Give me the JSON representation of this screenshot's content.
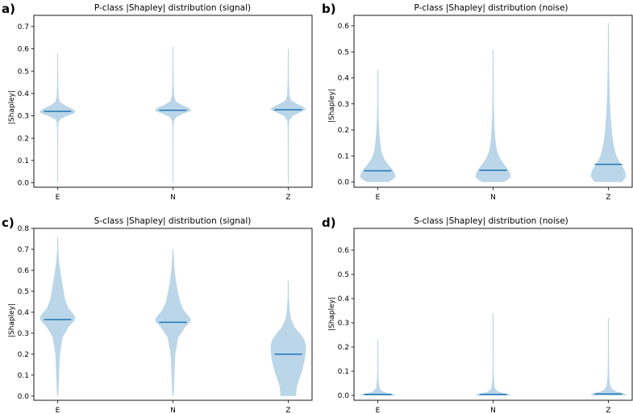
{
  "colors": {
    "violin": "#1f77b4",
    "median": "#1f77b4"
  },
  "chart_data": [
    {
      "tag": "a)",
      "type": "violin",
      "title": "P-class |Shapley| distribution (signal)",
      "xlabel": "",
      "ylabel": "|Shapley|",
      "categories": [
        "E",
        "N",
        "Z"
      ],
      "ylim": [
        -0.02,
        0.75
      ],
      "yticks": [
        0.0,
        0.1,
        0.2,
        0.3,
        0.4,
        0.5,
        0.6,
        0.7
      ],
      "yticklabels": [
        "0.0",
        "0.1",
        "0.2",
        "0.3",
        "0.4",
        "0.5",
        "0.6",
        "0.7"
      ],
      "series": [
        {
          "name": "E",
          "min": 0.0,
          "max": 0.58,
          "median": 0.32,
          "profile": [
            [
              0.0,
              0.0
            ],
            [
              0.04,
              0.01
            ],
            [
              0.15,
              0.02
            ],
            [
              0.24,
              0.03
            ],
            [
              0.27,
              0.05
            ],
            [
              0.285,
              0.15
            ],
            [
              0.3,
              0.55
            ],
            [
              0.31,
              0.9
            ],
            [
              0.32,
              1.0
            ],
            [
              0.33,
              0.85
            ],
            [
              0.345,
              0.45
            ],
            [
              0.36,
              0.15
            ],
            [
              0.38,
              0.06
            ],
            [
              0.43,
              0.035
            ],
            [
              0.5,
              0.015
            ],
            [
              0.58,
              0.0
            ]
          ]
        },
        {
          "name": "N",
          "min": 0.0,
          "max": 0.61,
          "median": 0.325,
          "profile": [
            [
              0.0,
              0.0
            ],
            [
              0.05,
              0.01
            ],
            [
              0.16,
              0.02
            ],
            [
              0.25,
              0.03
            ],
            [
              0.28,
              0.06
            ],
            [
              0.295,
              0.2
            ],
            [
              0.31,
              0.6
            ],
            [
              0.32,
              0.95
            ],
            [
              0.327,
              1.0
            ],
            [
              0.337,
              0.85
            ],
            [
              0.35,
              0.45
            ],
            [
              0.365,
              0.15
            ],
            [
              0.39,
              0.06
            ],
            [
              0.45,
              0.035
            ],
            [
              0.53,
              0.015
            ],
            [
              0.61,
              0.0
            ]
          ]
        },
        {
          "name": "Z",
          "min": 0.0,
          "max": 0.6,
          "median": 0.327,
          "profile": [
            [
              0.0,
              0.0
            ],
            [
              0.05,
              0.01
            ],
            [
              0.16,
              0.02
            ],
            [
              0.25,
              0.03
            ],
            [
              0.28,
              0.06
            ],
            [
              0.3,
              0.25
            ],
            [
              0.315,
              0.65
            ],
            [
              0.325,
              0.95
            ],
            [
              0.33,
              1.0
            ],
            [
              0.34,
              0.85
            ],
            [
              0.355,
              0.45
            ],
            [
              0.37,
              0.15
            ],
            [
              0.395,
              0.06
            ],
            [
              0.45,
              0.035
            ],
            [
              0.52,
              0.015
            ],
            [
              0.6,
              0.0
            ]
          ]
        }
      ]
    },
    {
      "tag": "b)",
      "type": "violin",
      "title": "P-class |Shapley| distribution (noise)",
      "xlabel": "",
      "ylabel": "|Shapley|",
      "categories": [
        "E",
        "N",
        "Z"
      ],
      "ylim": [
        -0.02,
        0.64
      ],
      "yticks": [
        0.0,
        0.1,
        0.2,
        0.3,
        0.4,
        0.5,
        0.6
      ],
      "yticklabels": [
        "0.0",
        "0.1",
        "0.2",
        "0.3",
        "0.4",
        "0.5",
        "0.6"
      ],
      "series": [
        {
          "name": "E",
          "min": 0.0,
          "max": 0.43,
          "median": 0.043,
          "profile": [
            [
              0.0,
              0.6
            ],
            [
              0.01,
              0.85
            ],
            [
              0.02,
              1.0
            ],
            [
              0.035,
              0.95
            ],
            [
              0.05,
              0.8
            ],
            [
              0.07,
              0.55
            ],
            [
              0.09,
              0.35
            ],
            [
              0.12,
              0.2
            ],
            [
              0.16,
              0.12
            ],
            [
              0.22,
              0.06
            ],
            [
              0.3,
              0.03
            ],
            [
              0.43,
              0.0
            ]
          ]
        },
        {
          "name": "N",
          "min": 0.0,
          "max": 0.51,
          "median": 0.045,
          "profile": [
            [
              0.0,
              0.6
            ],
            [
              0.01,
              0.85
            ],
            [
              0.02,
              1.0
            ],
            [
              0.035,
              0.95
            ],
            [
              0.05,
              0.82
            ],
            [
              0.07,
              0.6
            ],
            [
              0.09,
              0.4
            ],
            [
              0.12,
              0.22
            ],
            [
              0.16,
              0.13
            ],
            [
              0.22,
              0.07
            ],
            [
              0.32,
              0.035
            ],
            [
              0.51,
              0.0
            ]
          ]
        },
        {
          "name": "Z",
          "min": 0.0,
          "max": 0.61,
          "median": 0.068,
          "profile": [
            [
              0.0,
              0.75
            ],
            [
              0.01,
              0.9
            ],
            [
              0.025,
              1.0
            ],
            [
              0.045,
              0.92
            ],
            [
              0.07,
              0.68
            ],
            [
              0.1,
              0.45
            ],
            [
              0.14,
              0.3
            ],
            [
              0.19,
              0.2
            ],
            [
              0.26,
              0.12
            ],
            [
              0.34,
              0.07
            ],
            [
              0.45,
              0.035
            ],
            [
              0.61,
              0.0
            ]
          ]
        }
      ]
    },
    {
      "tag": "c)",
      "type": "violin",
      "title": "S-class |Shapley| distribution (signal)",
      "xlabel": "",
      "ylabel": "|Shapley|",
      "categories": [
        "E",
        "N",
        "Z"
      ],
      "ylim": [
        -0.02,
        0.8
      ],
      "yticks": [
        0.0,
        0.1,
        0.2,
        0.3,
        0.4,
        0.5,
        0.6,
        0.7,
        0.8
      ],
      "yticklabels": [
        "0.0",
        "0.1",
        "0.2",
        "0.3",
        "0.4",
        "0.5",
        "0.6",
        "0.7",
        "0.8"
      ],
      "series": [
        {
          "name": "E",
          "min": 0.0,
          "max": 0.76,
          "median": 0.365,
          "profile": [
            [
              0.0,
              0.0
            ],
            [
              0.03,
              0.05
            ],
            [
              0.1,
              0.08
            ],
            [
              0.2,
              0.13
            ],
            [
              0.28,
              0.28
            ],
            [
              0.33,
              0.62
            ],
            [
              0.36,
              0.95
            ],
            [
              0.375,
              1.0
            ],
            [
              0.39,
              0.9
            ],
            [
              0.42,
              0.6
            ],
            [
              0.46,
              0.42
            ],
            [
              0.52,
              0.3
            ],
            [
              0.58,
              0.18
            ],
            [
              0.64,
              0.08
            ],
            [
              0.7,
              0.03
            ],
            [
              0.76,
              0.0
            ]
          ]
        },
        {
          "name": "N",
          "min": 0.0,
          "max": 0.7,
          "median": 0.352,
          "profile": [
            [
              0.0,
              0.0
            ],
            [
              0.03,
              0.05
            ],
            [
              0.1,
              0.08
            ],
            [
              0.2,
              0.13
            ],
            [
              0.28,
              0.3
            ],
            [
              0.33,
              0.7
            ],
            [
              0.355,
              0.97
            ],
            [
              0.368,
              1.0
            ],
            [
              0.38,
              0.9
            ],
            [
              0.41,
              0.6
            ],
            [
              0.45,
              0.4
            ],
            [
              0.5,
              0.27
            ],
            [
              0.56,
              0.15
            ],
            [
              0.62,
              0.07
            ],
            [
              0.7,
              0.0
            ]
          ]
        },
        {
          "name": "Z",
          "min": 0.0,
          "max": 0.55,
          "median": 0.2,
          "profile": [
            [
              0.0,
              0.45
            ],
            [
              0.02,
              0.45
            ],
            [
              0.05,
              0.5
            ],
            [
              0.08,
              0.62
            ],
            [
              0.12,
              0.78
            ],
            [
              0.17,
              0.92
            ],
            [
              0.2,
              0.97
            ],
            [
              0.24,
              1.0
            ],
            [
              0.27,
              0.9
            ],
            [
              0.3,
              0.65
            ],
            [
              0.33,
              0.35
            ],
            [
              0.37,
              0.15
            ],
            [
              0.42,
              0.07
            ],
            [
              0.48,
              0.03
            ],
            [
              0.55,
              0.0
            ]
          ]
        }
      ]
    },
    {
      "tag": "d)",
      "type": "violin",
      "title": "S-class |Shapley| distribution (noise)",
      "xlabel": "",
      "ylabel": "|Shapley|",
      "categories": [
        "E",
        "N",
        "Z"
      ],
      "ylim": [
        -0.02,
        0.69
      ],
      "yticks": [
        0.0,
        0.1,
        0.2,
        0.3,
        0.4,
        0.5,
        0.6
      ],
      "yticklabels": [
        "0.0",
        "0.1",
        "0.2",
        "0.3",
        "0.4",
        "0.5",
        "0.6"
      ],
      "series": [
        {
          "name": "E",
          "min": 0.0,
          "max": 0.23,
          "median": 0.004,
          "profile": [
            [
              0.0,
              1.0
            ],
            [
              0.004,
              0.95
            ],
            [
              0.008,
              0.7
            ],
            [
              0.014,
              0.35
            ],
            [
              0.022,
              0.17
            ],
            [
              0.035,
              0.09
            ],
            [
              0.06,
              0.05
            ],
            [
              0.1,
              0.03
            ],
            [
              0.16,
              0.015
            ],
            [
              0.23,
              0.0
            ]
          ]
        },
        {
          "name": "N",
          "min": 0.0,
          "max": 0.34,
          "median": 0.004,
          "profile": [
            [
              0.0,
              1.0
            ],
            [
              0.004,
              0.95
            ],
            [
              0.008,
              0.7
            ],
            [
              0.014,
              0.35
            ],
            [
              0.022,
              0.17
            ],
            [
              0.035,
              0.09
            ],
            [
              0.06,
              0.05
            ],
            [
              0.11,
              0.03
            ],
            [
              0.2,
              0.015
            ],
            [
              0.34,
              0.0
            ]
          ]
        },
        {
          "name": "Z",
          "min": 0.0,
          "max": 0.32,
          "median": 0.006,
          "profile": [
            [
              0.0,
              0.95
            ],
            [
              0.005,
              1.0
            ],
            [
              0.01,
              0.8
            ],
            [
              0.016,
              0.45
            ],
            [
              0.025,
              0.22
            ],
            [
              0.04,
              0.11
            ],
            [
              0.065,
              0.06
            ],
            [
              0.11,
              0.035
            ],
            [
              0.2,
              0.015
            ],
            [
              0.32,
              0.0
            ]
          ]
        }
      ]
    }
  ]
}
